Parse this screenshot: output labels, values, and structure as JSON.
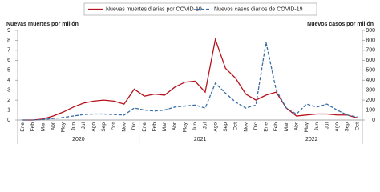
{
  "chart_data": {
    "type": "line",
    "legend": "top",
    "ylabel": "Nuevas muertes por millón",
    "y2label": "Nuevos casos por millón",
    "categories": [
      "Ene",
      "Feb",
      "Mar",
      "Abr",
      "May",
      "Jun",
      "Jul",
      "Ago",
      "Sep",
      "Oct",
      "Nov",
      "Dic",
      "Ene",
      "Feb",
      "Mar",
      "Abr",
      "May",
      "Jun",
      "Jul",
      "Ago",
      "Sep",
      "Oct",
      "Nov",
      "Dic",
      "Ene",
      "Feb",
      "Mar",
      "Abr",
      "May",
      "Jun",
      "Jul",
      "Ago",
      "Sep",
      "Oct"
    ],
    "x_groups": [
      "2020",
      "2021",
      "2022"
    ],
    "ylim": [
      0,
      9
    ],
    "yticks": [
      0,
      1,
      2,
      3,
      4,
      5,
      6,
      7,
      8,
      9
    ],
    "y2lim": [
      0,
      900
    ],
    "y2ticks": [
      0,
      100,
      200,
      300,
      400,
      500,
      600,
      700,
      800,
      900
    ],
    "grid": false,
    "series": [
      {
        "name": "Nuevas muertes diarias por COVID-19",
        "color": "#b5121b",
        "style": "solid",
        "values": [
          0,
          0,
          0.1,
          0.4,
          0.8,
          1.3,
          1.7,
          1.9,
          2.0,
          1.9,
          1.6,
          3.1,
          2.4,
          2.6,
          2.5,
          3.3,
          3.8,
          3.9,
          2.8,
          8.1,
          5.2,
          4.2,
          2.6,
          2.0,
          2.5,
          2.8,
          1.2,
          0.4,
          0.5,
          0.6,
          0.6,
          0.5,
          0.5,
          0.2
        ]
      },
      {
        "name": "Nuevos casos diarios de COVID-19",
        "color": "#3a6fa5",
        "style": "dashed",
        "axis": "y2",
        "values": [
          0,
          0,
          5,
          15,
          25,
          40,
          55,
          60,
          60,
          55,
          50,
          120,
          100,
          90,
          100,
          130,
          140,
          150,
          120,
          370,
          270,
          180,
          120,
          150,
          780,
          300,
          120,
          60,
          160,
          130,
          160,
          100,
          50,
          30
        ]
      }
    ]
  }
}
